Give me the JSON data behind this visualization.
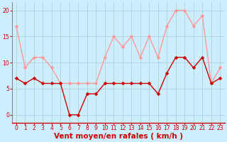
{
  "x": [
    0,
    1,
    2,
    3,
    4,
    5,
    6,
    7,
    8,
    9,
    10,
    11,
    12,
    13,
    14,
    15,
    16,
    17,
    18,
    19,
    20,
    21,
    22,
    23
  ],
  "wind_mean": [
    7,
    6,
    7,
    6,
    6,
    6,
    0,
    0,
    4,
    4,
    6,
    6,
    6,
    6,
    6,
    6,
    4,
    8,
    11,
    11,
    9,
    11,
    6,
    7
  ],
  "wind_gust": [
    17,
    9,
    11,
    11,
    9,
    6,
    6,
    6,
    6,
    6,
    11,
    15,
    13,
    15,
    11,
    15,
    11,
    17,
    20,
    20,
    17,
    19,
    6,
    9
  ],
  "xtick_labels": [
    "0",
    "1",
    "2",
    "3",
    "4",
    "5",
    "6",
    "7",
    "8",
    "9",
    "10",
    "11",
    "12",
    "13",
    "14",
    "15",
    "16",
    "17",
    "18",
    "19",
    "20",
    "21",
    "22",
    "23"
  ],
  "yticks": [
    0,
    5,
    10,
    15,
    20
  ],
  "ylim": [
    -1.5,
    21.5
  ],
  "xlim": [
    -0.5,
    23.5
  ],
  "xlabel": "Vent moyen/en rafales ( km/h )",
  "line_color_mean": "#cc0000",
  "line_color_gust": "#ff9999",
  "bg_color": "#cceeff",
  "grid_color": "#aacccc",
  "marker_size": 2.5,
  "line_width": 1.0,
  "xlabel_color": "#cc0000",
  "tick_color": "#cc0000",
  "tick_fontsize": 5.5,
  "xlabel_fontsize": 7.5
}
